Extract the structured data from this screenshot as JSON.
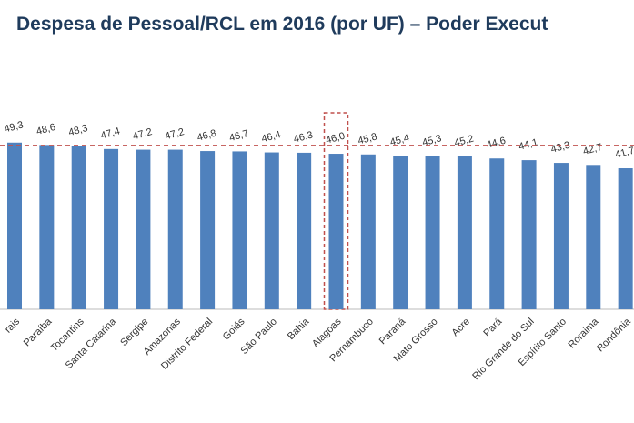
{
  "chart_data": {
    "type": "bar",
    "title": "Despesa  de Pessoal/RCL  em 2016 (por UF) – Poder Execut",
    "categories": [
      "rais",
      "Paraíba",
      "Tocantins",
      "Santa Catarina",
      "Sergipe",
      "Amazonas",
      "Distrito Federal",
      "Goiás",
      "São Paulo",
      "Bahia",
      "Alagoas",
      "Pernambuco",
      "Paraná",
      "Mato Grosso",
      "Acre",
      "Pará",
      "Rio Grande do Sul",
      "Espírito Santo",
      "Roraima",
      "Rondônia"
    ],
    "values": [
      49.3,
      48.6,
      48.3,
      47.4,
      47.2,
      47.2,
      46.8,
      46.7,
      46.4,
      46.3,
      46.0,
      45.8,
      45.4,
      45.3,
      45.2,
      44.6,
      44.1,
      43.3,
      42.7,
      41.7
    ],
    "value_labels": [
      "49,3",
      "48,6",
      "48,3",
      "47,4",
      "47,2",
      "47,2",
      "46,8",
      "46,7",
      "46,4",
      "46,3",
      "46,0",
      "45,8",
      "45,4",
      "45,3",
      "45,2",
      "44,6",
      "44,1",
      "43,3",
      "42,7",
      "41,7"
    ],
    "color": "#4f81bd",
    "ylim": [
      0,
      60
    ],
    "reference_line": 48.5,
    "reference_color": "#c0504d",
    "highlight": "Alagoas"
  }
}
